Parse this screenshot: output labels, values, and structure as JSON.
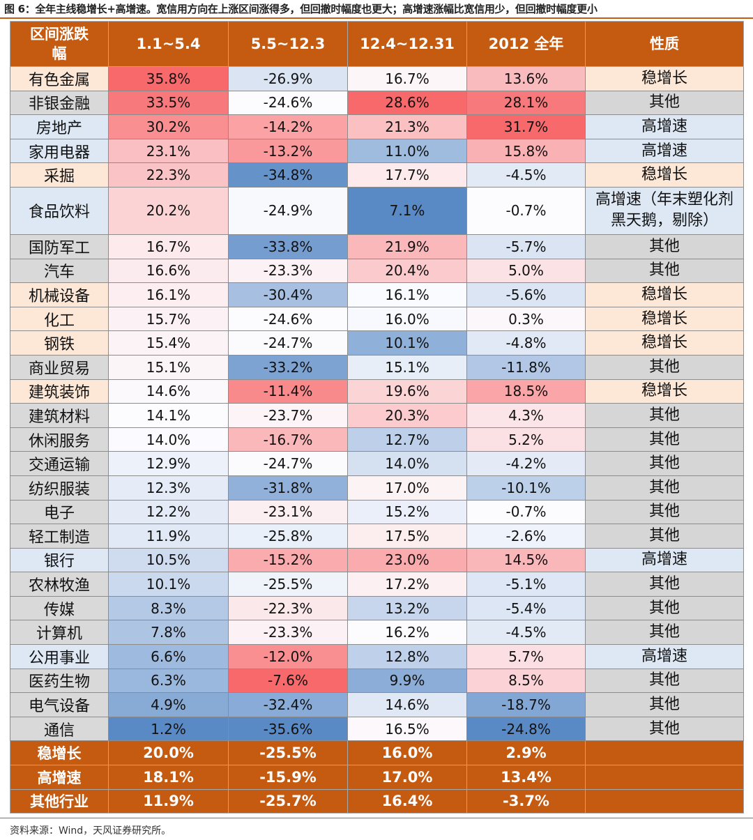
{
  "title": "图 6：全年主线稳增长+高增速。宽信用方向在上涨区间涨得多，但回撤时幅度也更大；高增速涨幅比宽信用少，但回撤时幅度更小",
  "source": "资料来源：Wind，天风证券研究所。",
  "headers": [
    "区间涨跌幅",
    "1.1~5.4",
    "5.5~12.3",
    "12.4~12.31",
    "2012 全年",
    "性质"
  ],
  "rows": [
    {
      "name": "有色金属",
      "v": [
        "35.8%",
        "-26.9%",
        "16.7%",
        "13.6%"
      ],
      "prop": "稳增长"
    },
    {
      "name": "非银金融",
      "v": [
        "33.5%",
        "-24.6%",
        "28.6%",
        "28.1%"
      ],
      "prop": "其他"
    },
    {
      "name": "房地产",
      "v": [
        "30.2%",
        "-14.2%",
        "21.3%",
        "31.7%"
      ],
      "prop": "高增速"
    },
    {
      "name": "家用电器",
      "v": [
        "23.1%",
        "-13.2%",
        "11.0%",
        "15.8%"
      ],
      "prop": "高增速"
    },
    {
      "name": "采掘",
      "v": [
        "22.3%",
        "-34.8%",
        "17.7%",
        "-4.5%"
      ],
      "prop": "稳增长"
    },
    {
      "name": "食品饮料",
      "v": [
        "20.2%",
        "-24.9%",
        "7.1%",
        "-0.7%"
      ],
      "prop": "高增速（年末塑化剂黑天鹅，剔除）"
    },
    {
      "name": "国防军工",
      "v": [
        "16.7%",
        "-33.8%",
        "21.9%",
        "-5.7%"
      ],
      "prop": "其他"
    },
    {
      "name": "汽车",
      "v": [
        "16.6%",
        "-23.3%",
        "20.4%",
        "5.0%"
      ],
      "prop": "其他"
    },
    {
      "name": "机械设备",
      "v": [
        "16.1%",
        "-30.4%",
        "16.1%",
        "-5.6%"
      ],
      "prop": "稳增长"
    },
    {
      "name": "化工",
      "v": [
        "15.7%",
        "-24.6%",
        "16.0%",
        "0.3%"
      ],
      "prop": "稳增长"
    },
    {
      "name": "钢铁",
      "v": [
        "15.4%",
        "-24.7%",
        "10.1%",
        "-4.8%"
      ],
      "prop": "稳增长"
    },
    {
      "name": "商业贸易",
      "v": [
        "15.1%",
        "-33.2%",
        "15.1%",
        "-11.8%"
      ],
      "prop": "其他"
    },
    {
      "name": "建筑装饰",
      "v": [
        "14.6%",
        "-11.4%",
        "19.6%",
        "18.5%"
      ],
      "prop": "稳增长"
    },
    {
      "name": "建筑材料",
      "v": [
        "14.1%",
        "-23.7%",
        "20.3%",
        "4.3%"
      ],
      "prop": "其他"
    },
    {
      "name": "休闲服务",
      "v": [
        "14.0%",
        "-16.7%",
        "12.7%",
        "5.2%"
      ],
      "prop": "其他"
    },
    {
      "name": "交通运输",
      "v": [
        "12.9%",
        "-24.7%",
        "14.0%",
        "-4.2%"
      ],
      "prop": "其他"
    },
    {
      "name": "纺织服装",
      "v": [
        "12.3%",
        "-31.8%",
        "17.0%",
        "-10.1%"
      ],
      "prop": "其他"
    },
    {
      "name": "电子",
      "v": [
        "12.2%",
        "-23.1%",
        "15.2%",
        "-0.7%"
      ],
      "prop": "其他"
    },
    {
      "name": "轻工制造",
      "v": [
        "11.9%",
        "-25.8%",
        "17.5%",
        "-2.6%"
      ],
      "prop": "其他"
    },
    {
      "name": "银行",
      "v": [
        "10.5%",
        "-15.2%",
        "23.0%",
        "14.5%"
      ],
      "prop": "高增速"
    },
    {
      "name": "农林牧渔",
      "v": [
        "10.1%",
        "-25.5%",
        "17.2%",
        "-5.1%"
      ],
      "prop": "其他"
    },
    {
      "name": "传媒",
      "v": [
        "8.3%",
        "-22.3%",
        "13.2%",
        "-5.4%"
      ],
      "prop": "其他"
    },
    {
      "name": "计算机",
      "v": [
        "7.8%",
        "-23.3%",
        "16.2%",
        "-4.5%"
      ],
      "prop": "其他"
    },
    {
      "name": "公用事业",
      "v": [
        "6.6%",
        "-12.0%",
        "12.8%",
        "5.7%"
      ],
      "prop": "高增速"
    },
    {
      "name": "医药生物",
      "v": [
        "6.3%",
        "-7.6%",
        "9.9%",
        "8.5%"
      ],
      "prop": "其他"
    },
    {
      "name": "电气设备",
      "v": [
        "4.9%",
        "-32.4%",
        "14.6%",
        "-18.7%"
      ],
      "prop": "其他"
    },
    {
      "name": "通信",
      "v": [
        "1.2%",
        "-35.6%",
        "16.5%",
        "-24.8%"
      ],
      "prop": "其他"
    }
  ],
  "summary": [
    {
      "name": "稳增长",
      "v": [
        "20.0%",
        "-25.5%",
        "16.0%",
        "2.9%"
      ]
    },
    {
      "name": "高增速",
      "v": [
        "18.1%",
        "-15.9%",
        "17.0%",
        "13.4%"
      ]
    },
    {
      "name": "其他行业",
      "v": [
        "11.9%",
        "-25.7%",
        "16.4%",
        "-3.7%"
      ]
    }
  ],
  "colors": {
    "header_bg": "#c55a11",
    "prop_bg": {
      "稳增长": "#fde8d8",
      "高增速": "#dde8f4",
      "其他": "#d6d6d6"
    },
    "name_bg": {
      "稳增长": "#fde8d8",
      "高增速": "#dde8f4",
      "其他": "#d9d9d9"
    },
    "pos_max": "#f8696b",
    "neg_max": "#5a8ac6",
    "neutral": "#fcfcff"
  }
}
